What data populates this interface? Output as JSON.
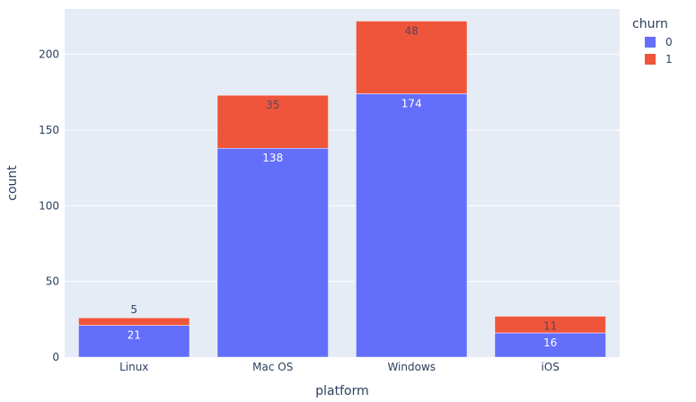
{
  "chart_data": {
    "type": "bar",
    "stacked": true,
    "xlabel": "platform",
    "ylabel": "count",
    "ylim": [
      0,
      230
    ],
    "yticks": [
      0,
      50,
      100,
      150,
      200
    ],
    "categories": [
      "Linux",
      "Mac OS",
      "Windows",
      "iOS"
    ],
    "series": [
      {
        "name": "0",
        "values": [
          21,
          138,
          174,
          16
        ],
        "color": "#636efa"
      },
      {
        "name": "1",
        "values": [
          5,
          35,
          48,
          11
        ],
        "color": "#ef553b"
      }
    ],
    "legend": {
      "title": "churn",
      "placement": "top-right"
    },
    "grid": true,
    "plot_bgcolor": "#e5ecf6"
  }
}
